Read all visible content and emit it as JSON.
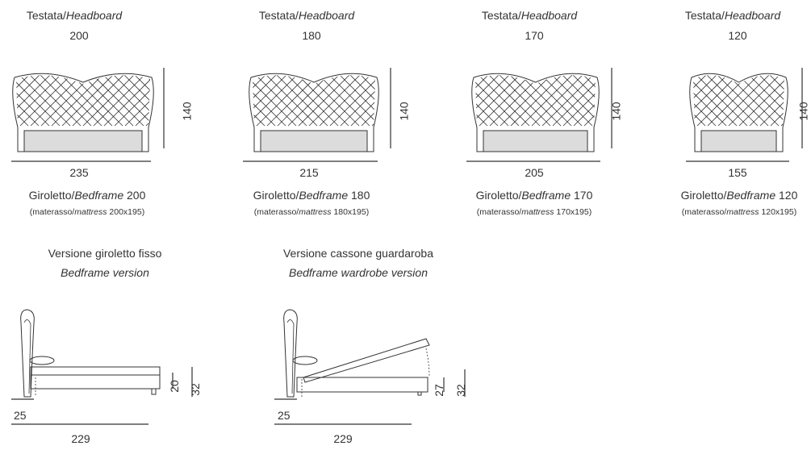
{
  "colors": {
    "line": "#333333",
    "panel": "#dcdcdc",
    "text": "#333333"
  },
  "headboards": [
    {
      "title_it": "Testata/",
      "title_en": "Headboard",
      "size": "200",
      "height": "140",
      "width": "235",
      "bedframe_it": "Giroletto/",
      "bedframe_en": "Bedframe",
      "bedframe_size": " 200",
      "mattress_it": "(materasso/",
      "mattress_en": "mattress",
      "mattress_size": " 200x195)"
    },
    {
      "title_it": "Testata/",
      "title_en": "Headboard",
      "size": "180",
      "height": "140",
      "width": "215",
      "bedframe_it": "Giroletto/",
      "bedframe_en": "Bedframe",
      "bedframe_size": " 180",
      "mattress_it": "(materasso/",
      "mattress_en": "mattress",
      "mattress_size": " 180x195)"
    },
    {
      "title_it": "Testata/",
      "title_en": "Headboard",
      "size": "170",
      "height": "140",
      "width": "205",
      "bedframe_it": "Giroletto/",
      "bedframe_en": "Bedframe",
      "bedframe_size": " 170",
      "mattress_it": "(materasso/",
      "mattress_en": "mattress",
      "mattress_size": " 170x195)"
    },
    {
      "title_it": "Testata/",
      "title_en": "Headboard",
      "size": "120",
      "height": "140",
      "width": "155",
      "bedframe_it": "Giroletto/",
      "bedframe_en": "Bedframe",
      "bedframe_size": " 120",
      "mattress_it": "(materasso/",
      "mattress_en": "mattress",
      "mattress_size": " 120x195)"
    }
  ],
  "versions": [
    {
      "title_it": "Versione giroletto fisso",
      "title_en": "Bedframe version",
      "headboard_depth": "25",
      "length": "229",
      "frame_height": "20",
      "total_height": "32"
    },
    {
      "title_it": "Versione cassone guardaroba",
      "title_en": "Bedframe wardrobe version",
      "headboard_depth": "25",
      "length": "229",
      "frame_height": "27",
      "total_height": "32"
    }
  ]
}
